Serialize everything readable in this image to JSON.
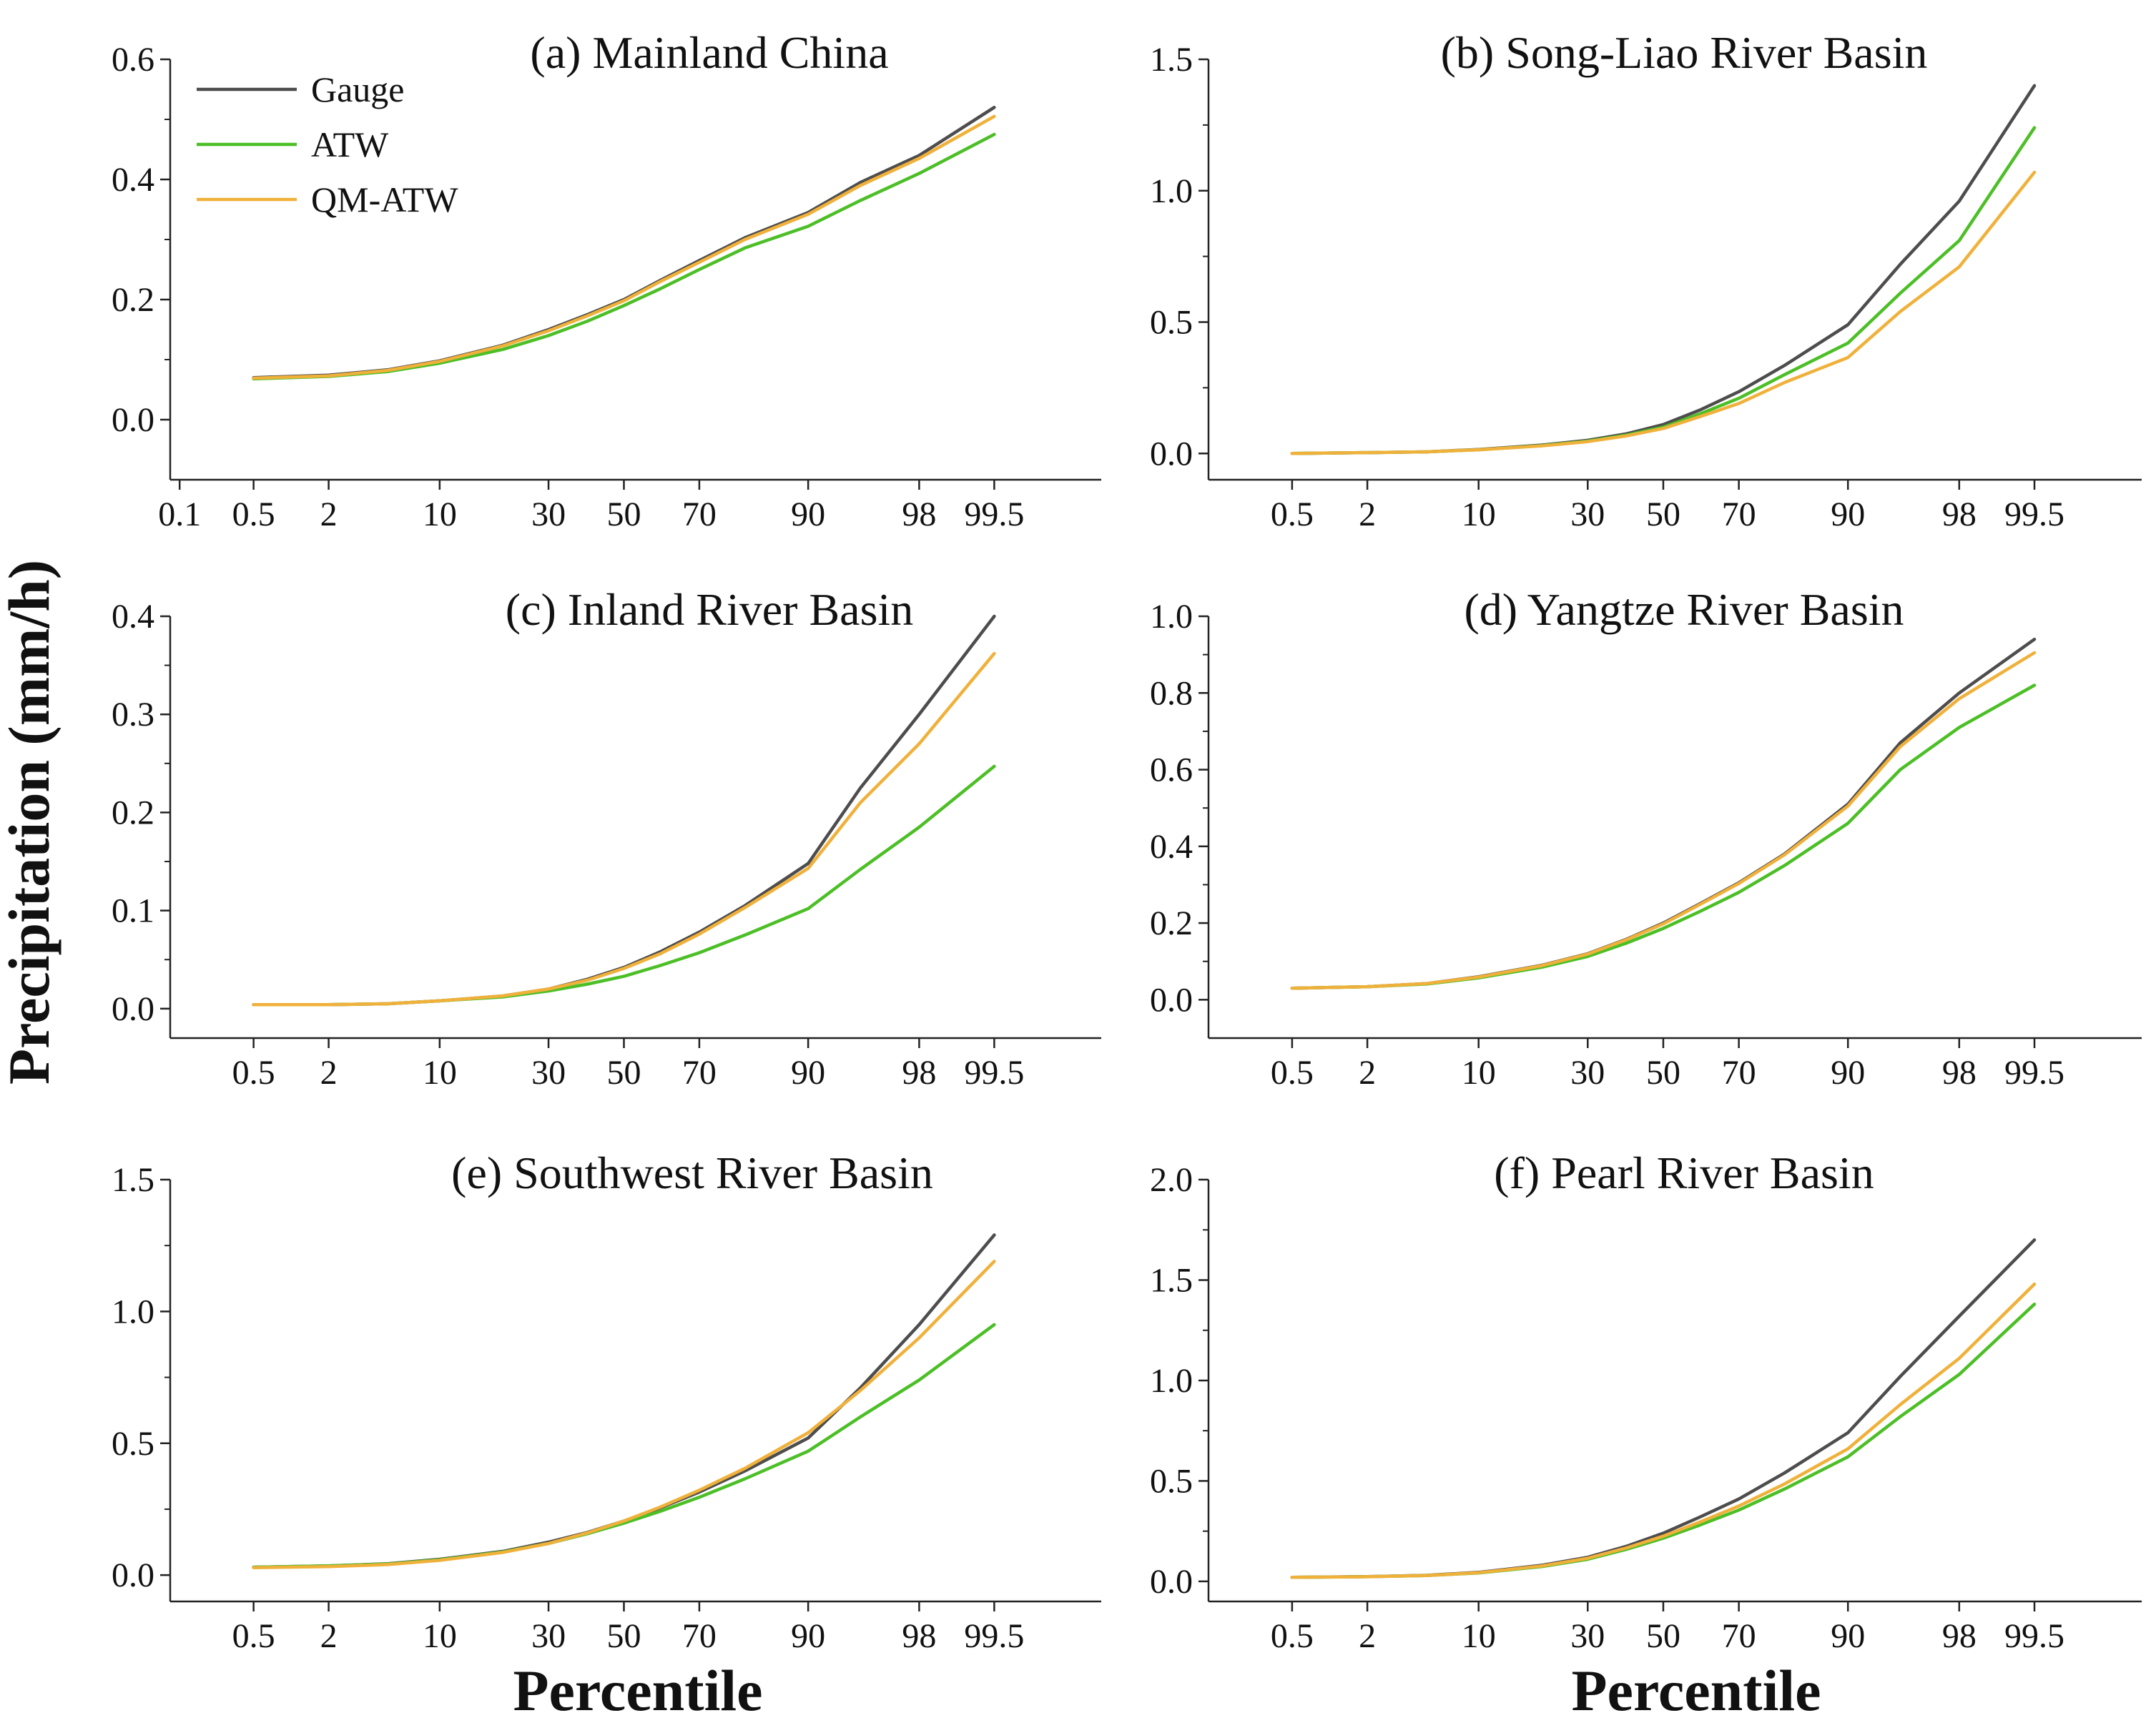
{
  "colors": {
    "gauge": "#4d4d4d",
    "atw": "#4cbf26",
    "qm_atw": "#f0b13b",
    "axis": "#222222"
  },
  "labels": {
    "ylabel": "Precipitation (mm/h)",
    "xlabel_left": "Percentile",
    "xlabel_right": "Percentile"
  },
  "legend": [
    {
      "key": "gauge",
      "label": "Gauge"
    },
    {
      "key": "atw",
      "label": "ATW"
    },
    {
      "key": "qm_atw",
      "label": "QM-ATW"
    }
  ],
  "chart_data": [
    {
      "type": "line",
      "title": "(a) Mainland China",
      "x": [
        0.5,
        2,
        5,
        10,
        20,
        30,
        40,
        50,
        60,
        70,
        80,
        90,
        95,
        98,
        99.5
      ],
      "xticks": [
        "0.1",
        "0.5",
        "2",
        "10",
        "30",
        "50",
        "70",
        "90",
        "98",
        "99.5"
      ],
      "ylim": [
        -0.1,
        0.6
      ],
      "yticks": [
        "0.0",
        "0.2",
        "0.4",
        "0.6"
      ],
      "legend_position": "top-left",
      "series": [
        {
          "name": "Gauge",
          "values": [
            0.07,
            0.074,
            0.083,
            0.098,
            0.124,
            0.15,
            0.175,
            0.2,
            0.232,
            0.265,
            0.303,
            0.345,
            0.395,
            0.44,
            0.52
          ]
        },
        {
          "name": "ATW",
          "values": [
            0.068,
            0.072,
            0.08,
            0.094,
            0.117,
            0.14,
            0.164,
            0.19,
            0.218,
            0.25,
            0.286,
            0.322,
            0.365,
            0.41,
            0.475
          ]
        },
        {
          "name": "QM-ATW",
          "values": [
            0.069,
            0.073,
            0.082,
            0.097,
            0.123,
            0.148,
            0.173,
            0.198,
            0.23,
            0.262,
            0.3,
            0.342,
            0.39,
            0.435,
            0.505
          ]
        }
      ]
    },
    {
      "type": "line",
      "title": "(b) Song-Liao River Basin",
      "x": [
        0.5,
        2,
        5,
        10,
        20,
        30,
        40,
        50,
        60,
        70,
        80,
        90,
        95,
        98,
        99.5
      ],
      "xticks": [
        "0.5",
        "2",
        "10",
        "30",
        "50",
        "70",
        "90",
        "98",
        "99.5"
      ],
      "ylim": [
        -0.1,
        1.5
      ],
      "yticks": [
        "0.0",
        "0.5",
        "1.0",
        "1.5"
      ],
      "series": [
        {
          "name": "Gauge",
          "values": [
            0.0,
            0.003,
            0.006,
            0.015,
            0.032,
            0.05,
            0.075,
            0.11,
            0.165,
            0.235,
            0.335,
            0.49,
            0.72,
            0.96,
            1.4
          ]
        },
        {
          "name": "ATW",
          "values": [
            0.0,
            0.003,
            0.006,
            0.014,
            0.03,
            0.047,
            0.07,
            0.1,
            0.15,
            0.21,
            0.3,
            0.42,
            0.61,
            0.81,
            1.24
          ]
        },
        {
          "name": "QM-ATW",
          "values": [
            0.0,
            0.003,
            0.006,
            0.014,
            0.029,
            0.045,
            0.067,
            0.095,
            0.14,
            0.19,
            0.27,
            0.365,
            0.54,
            0.71,
            1.07
          ]
        }
      ]
    },
    {
      "type": "line",
      "title": "(c) Inland River Basin",
      "x": [
        0.5,
        2,
        5,
        10,
        20,
        30,
        40,
        50,
        60,
        70,
        80,
        90,
        95,
        98,
        99.5
      ],
      "xticks": [
        "0.5",
        "2",
        "10",
        "30",
        "50",
        "70",
        "90",
        "98",
        "99.5"
      ],
      "ylim": [
        -0.03,
        0.4
      ],
      "yticks": [
        "0.0",
        "0.1",
        "0.2",
        "0.3",
        "0.4"
      ],
      "series": [
        {
          "name": "Gauge",
          "values": [
            0.004,
            0.004,
            0.005,
            0.008,
            0.013,
            0.02,
            0.03,
            0.042,
            0.058,
            0.078,
            0.105,
            0.148,
            0.225,
            0.3,
            0.4
          ]
        },
        {
          "name": "ATW",
          "values": [
            0.004,
            0.004,
            0.005,
            0.008,
            0.012,
            0.018,
            0.025,
            0.033,
            0.044,
            0.057,
            0.075,
            0.102,
            0.142,
            0.185,
            0.247
          ]
        },
        {
          "name": "QM-ATW",
          "values": [
            0.004,
            0.004,
            0.005,
            0.008,
            0.013,
            0.02,
            0.029,
            0.041,
            0.056,
            0.076,
            0.103,
            0.143,
            0.21,
            0.27,
            0.362
          ]
        }
      ]
    },
    {
      "type": "line",
      "title": "(d) Yangtze River Basin",
      "x": [
        0.5,
        2,
        5,
        10,
        20,
        30,
        40,
        50,
        60,
        70,
        80,
        90,
        95,
        98,
        99.5
      ],
      "xticks": [
        "0.5",
        "2",
        "10",
        "30",
        "50",
        "70",
        "90",
        "98",
        "99.5"
      ],
      "ylim": [
        -0.1,
        1.0
      ],
      "yticks": [
        "0.0",
        "0.2",
        "0.4",
        "0.6",
        "0.8",
        "1.0"
      ],
      "series": [
        {
          "name": "Gauge",
          "values": [
            0.03,
            0.034,
            0.042,
            0.06,
            0.09,
            0.12,
            0.158,
            0.2,
            0.25,
            0.305,
            0.38,
            0.51,
            0.67,
            0.8,
            0.94
          ]
        },
        {
          "name": "ATW",
          "values": [
            0.03,
            0.034,
            0.041,
            0.057,
            0.085,
            0.113,
            0.148,
            0.186,
            0.23,
            0.28,
            0.35,
            0.46,
            0.6,
            0.71,
            0.82
          ]
        },
        {
          "name": "QM-ATW",
          "values": [
            0.03,
            0.034,
            0.042,
            0.059,
            0.089,
            0.119,
            0.157,
            0.198,
            0.248,
            0.303,
            0.378,
            0.505,
            0.66,
            0.785,
            0.905
          ]
        }
      ]
    },
    {
      "type": "line",
      "title": "(e) Southwest River Basin",
      "x": [
        0.5,
        2,
        5,
        10,
        20,
        30,
        40,
        50,
        60,
        70,
        80,
        90,
        95,
        98,
        99.5
      ],
      "xticks": [
        "0.5",
        "2",
        "10",
        "30",
        "50",
        "70",
        "90",
        "98",
        "99.5"
      ],
      "ylim": [
        -0.1,
        1.5
      ],
      "yticks": [
        "0.0",
        "0.5",
        "1.0",
        "1.5"
      ],
      "series": [
        {
          "name": "Gauge",
          "values": [
            0.03,
            0.035,
            0.043,
            0.06,
            0.09,
            0.125,
            0.162,
            0.205,
            0.255,
            0.315,
            0.395,
            0.52,
            0.71,
            0.95,
            1.29
          ]
        },
        {
          "name": "ATW",
          "values": [
            0.03,
            0.035,
            0.042,
            0.058,
            0.088,
            0.12,
            0.157,
            0.197,
            0.242,
            0.295,
            0.365,
            0.47,
            0.6,
            0.74,
            0.95
          ]
        },
        {
          "name": "QM-ATW",
          "values": [
            0.028,
            0.032,
            0.04,
            0.056,
            0.086,
            0.12,
            0.16,
            0.205,
            0.258,
            0.322,
            0.405,
            0.54,
            0.7,
            0.9,
            1.19
          ]
        }
      ]
    },
    {
      "type": "line",
      "title": "(f) Pearl River Basin",
      "x": [
        0.5,
        2,
        5,
        10,
        20,
        30,
        40,
        50,
        60,
        70,
        80,
        90,
        95,
        98,
        99.5
      ],
      "xticks": [
        "0.5",
        "2",
        "10",
        "30",
        "50",
        "70",
        "90",
        "98",
        "99.5"
      ],
      "ylim": [
        -0.1,
        2.0
      ],
      "yticks": [
        "0.0",
        "0.5",
        "1.0",
        "1.5",
        "2.0"
      ],
      "series": [
        {
          "name": "Gauge",
          "values": [
            0.02,
            0.024,
            0.03,
            0.045,
            0.08,
            0.12,
            0.175,
            0.24,
            0.32,
            0.41,
            0.54,
            0.74,
            1.02,
            1.32,
            1.7
          ]
        },
        {
          "name": "ATW",
          "values": [
            0.02,
            0.023,
            0.029,
            0.042,
            0.074,
            0.11,
            0.16,
            0.215,
            0.28,
            0.355,
            0.46,
            0.62,
            0.82,
            1.03,
            1.38
          ]
        },
        {
          "name": "QM-ATW",
          "values": [
            0.02,
            0.023,
            0.029,
            0.043,
            0.077,
            0.115,
            0.167,
            0.225,
            0.295,
            0.375,
            0.485,
            0.66,
            0.88,
            1.11,
            1.48
          ]
        }
      ]
    }
  ]
}
